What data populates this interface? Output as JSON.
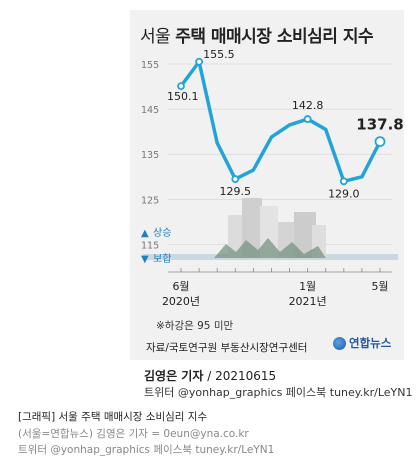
{
  "title_prefix": "서울",
  "title_main": "주택 매매시장 소비심리 지수",
  "legend": {
    "up": "상승",
    "down": "보합"
  },
  "note": "※하강은 95 미만",
  "source": "자료/국토연구원 부동산시장연구센터",
  "logo": "연합뉴스",
  "credit": {
    "name": "김영은 기자",
    "date": "20210615"
  },
  "social": "트위터 @yonhap_graphics  페이스북 tuney.kr/LeYN1",
  "caption": {
    "line1": "[그래픽] 서울 주택 매매시장 소비심리 지수",
    "line2": "(서울=연합뉴스) 김영은 기자 = 0eun@yna.co.kr",
    "line3": "트위터 @yonhap_graphics  페이스북 tuney.kr/LeYN1"
  },
  "colors": {
    "line": "#23a4d8",
    "accent": "#1f7fc1",
    "band": "#b5c7d4"
  },
  "chart_data": {
    "type": "line",
    "x": [
      "2020-06",
      "2020-07",
      "2020-08",
      "2020-09",
      "2020-10",
      "2020-11",
      "2020-12",
      "2021-01",
      "2021-02",
      "2021-03",
      "2021-04",
      "2021-05"
    ],
    "y": [
      150.1,
      155.5,
      137.5,
      129.5,
      131.5,
      138.8,
      141.5,
      142.8,
      140.5,
      129.0,
      130.0,
      137.8
    ],
    "labeled_points": [
      {
        "x": "2020-06",
        "label": "150.1"
      },
      {
        "x": "2020-07",
        "label": "155.5"
      },
      {
        "x": "2020-09",
        "label": "129.5"
      },
      {
        "x": "2021-01",
        "label": "142.8"
      },
      {
        "x": "2021-03",
        "label": "129.0"
      },
      {
        "x": "2021-05",
        "label": "137.8"
      }
    ],
    "ylim": [
      112,
      157
    ],
    "yticks": [
      "155",
      "145",
      "135",
      "125",
      "115"
    ],
    "xticks": [
      {
        "x": "2020-06",
        "label": "6월",
        "sub": "2020년"
      },
      {
        "x": "2021-01",
        "label": "1월",
        "sub": "2021년"
      },
      {
        "x": "2021-05",
        "label": "5월",
        "sub": ""
      }
    ],
    "grid": true
  }
}
